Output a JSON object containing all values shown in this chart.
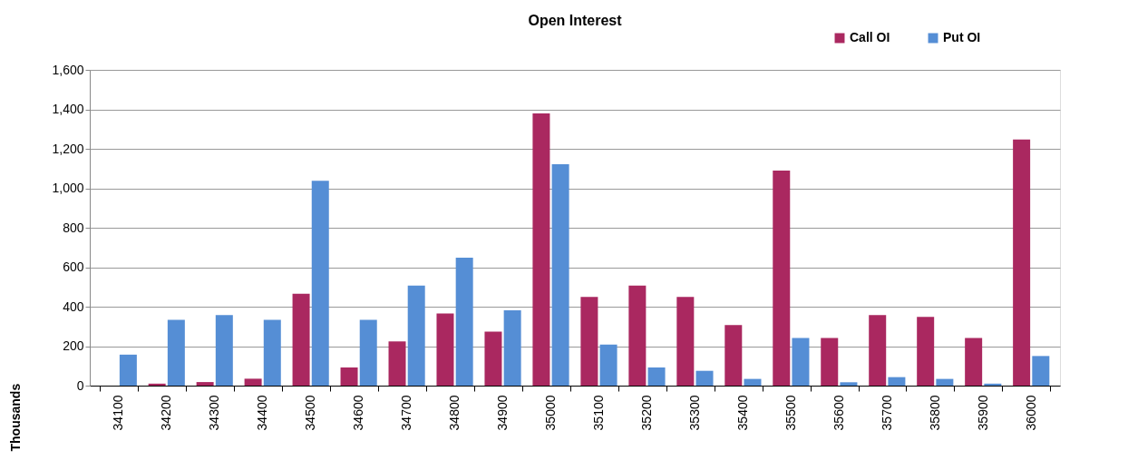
{
  "chart_data": {
    "type": "bar",
    "title": "Open Interest",
    "ylabel": "Thousands",
    "categories": [
      "34100",
      "34200",
      "34300",
      "34400",
      "34500",
      "34600",
      "34700",
      "34800",
      "34900",
      "35000",
      "35100",
      "35200",
      "35300",
      "35400",
      "35500",
      "35600",
      "35700",
      "35800",
      "35900",
      "36000"
    ],
    "series": [
      {
        "name": "Call OI",
        "color": "#aa2860",
        "values": [
          0,
          10,
          18,
          35,
          466,
          92,
          224,
          366,
          273,
          1379,
          449,
          507,
          449,
          307,
          1090,
          241,
          357,
          348,
          241,
          1247
        ]
      },
      {
        "name": "Put OI",
        "color": "#558ed5",
        "values": [
          157,
          333,
          357,
          333,
          1038,
          333,
          507,
          648,
          382,
          1122,
          208,
          92,
          75,
          34,
          241,
          17,
          43,
          34,
          10,
          150
        ]
      }
    ],
    "ylim": [
      0,
      1600
    ],
    "yticks": [
      {
        "value": 0,
        "label": "0"
      },
      {
        "value": 200,
        "label": "200"
      },
      {
        "value": 400,
        "label": "400"
      },
      {
        "value": 600,
        "label": "600"
      },
      {
        "value": 800,
        "label": "800"
      },
      {
        "value": 1000,
        "label": "1,000"
      },
      {
        "value": 1200,
        "label": "1,200"
      },
      {
        "value": 1400,
        "label": "1,400"
      },
      {
        "value": 1600,
        "label": "1,600"
      }
    ],
    "grid": "y",
    "legend": "top right"
  }
}
